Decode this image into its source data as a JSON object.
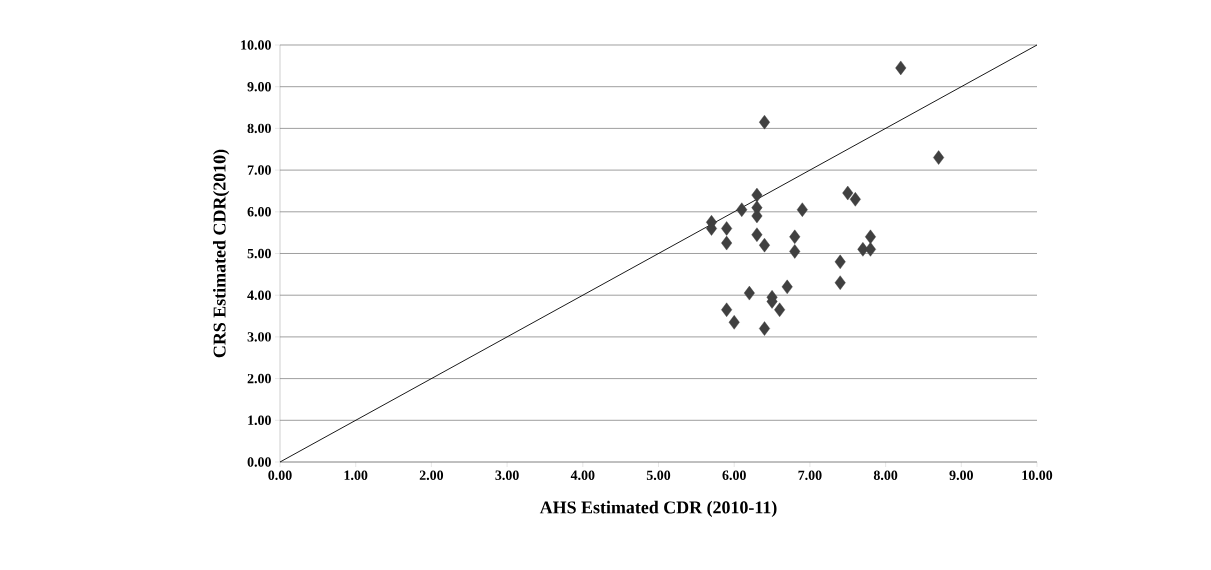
{
  "chart_data": {
    "type": "scatter",
    "xlabel": "AHS Estimated CDR (2010-11)",
    "ylabel": "CRS Estimated CDR(2010)",
    "xlim": [
      0,
      10
    ],
    "ylim": [
      0,
      10
    ],
    "xticks": [
      {
        "value": 0,
        "label": "0.00"
      },
      {
        "value": 1,
        "label": "1.00"
      },
      {
        "value": 2,
        "label": "2.00"
      },
      {
        "value": 3,
        "label": "3.00"
      },
      {
        "value": 4,
        "label": "4.00"
      },
      {
        "value": 5,
        "label": "5.00"
      },
      {
        "value": 6,
        "label": "6.00"
      },
      {
        "value": 7,
        "label": "7.00"
      },
      {
        "value": 8,
        "label": "8.00"
      },
      {
        "value": 9,
        "label": "9.00"
      },
      {
        "value": 10,
        "label": "10.00"
      }
    ],
    "yticks": [
      {
        "value": 0,
        "label": "0.00"
      },
      {
        "value": 1,
        "label": "1.00"
      },
      {
        "value": 2,
        "label": "2.00"
      },
      {
        "value": 3,
        "label": "3.00"
      },
      {
        "value": 4,
        "label": "4.00"
      },
      {
        "value": 5,
        "label": "5.00"
      },
      {
        "value": 6,
        "label": "6.00"
      },
      {
        "value": 7,
        "label": "7.00"
      },
      {
        "value": 8,
        "label": "8.00"
      },
      {
        "value": 9,
        "label": "9.00"
      },
      {
        "value": 10,
        "label": "10.00"
      }
    ],
    "grid": "y",
    "marker": "diamond",
    "series": [
      {
        "color": "#404040",
        "x": [
          5.7,
          5.7,
          5.9,
          5.9,
          6.0,
          5.9,
          6.1,
          6.3,
          6.3,
          6.3,
          6.3,
          6.4,
          6.4,
          6.2,
          6.4,
          6.5,
          6.6,
          6.5,
          6.7,
          6.8,
          6.8,
          6.9,
          7.4,
          7.4,
          7.5,
          7.6,
          7.7,
          7.8,
          7.8,
          8.2,
          8.7
        ],
        "values": [
          5.75,
          5.6,
          5.6,
          5.25,
          3.35,
          3.65,
          6.05,
          6.4,
          6.1,
          5.9,
          5.45,
          5.2,
          8.15,
          4.05,
          3.2,
          3.95,
          3.65,
          3.85,
          4.2,
          5.05,
          5.4,
          6.05,
          4.8,
          4.3,
          6.45,
          6.3,
          5.1,
          5.4,
          5.1,
          9.45,
          7.3
        ]
      },
      {
        "type": "line",
        "color": "#000000",
        "marker": "none",
        "x": [
          0,
          10
        ],
        "values": [
          0,
          10
        ]
      }
    ]
  }
}
